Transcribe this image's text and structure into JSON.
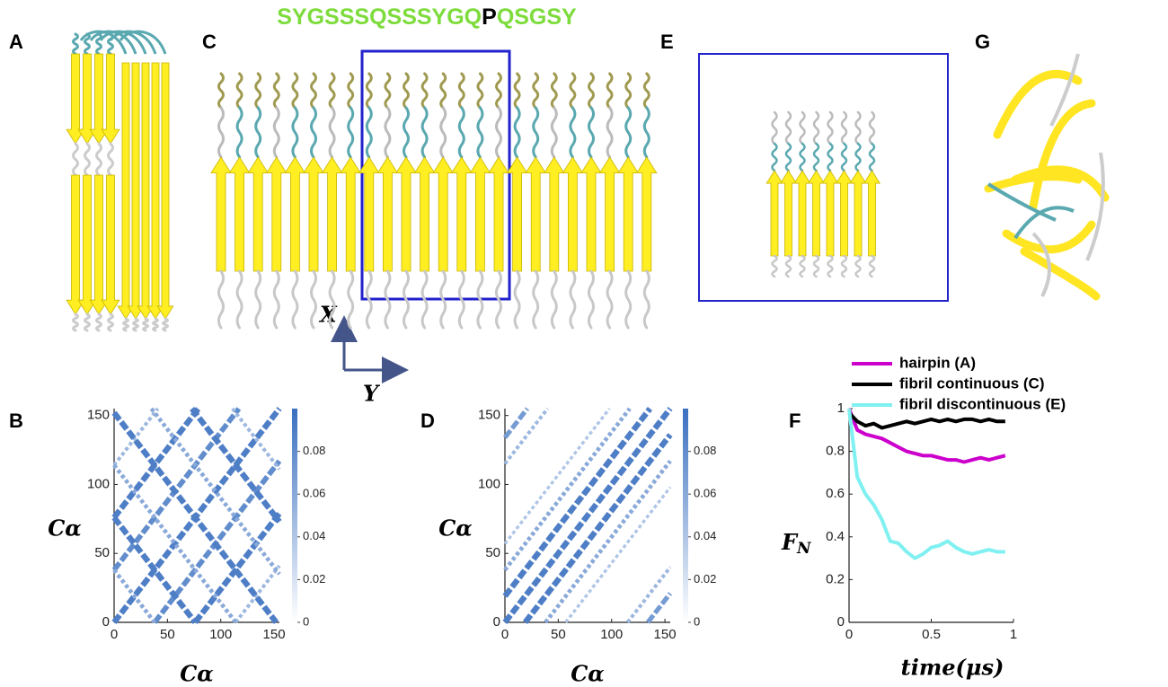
{
  "panel_labels": [
    "A",
    "C",
    "E",
    "G",
    "B",
    "D",
    "F"
  ],
  "sequence": [
    {
      "text": "SYGSSSQSSSYGQ",
      "color": "#7ddc3c"
    },
    {
      "text": "P",
      "color": "#000000"
    },
    {
      "text": "QSGSY",
      "color": "#7ddc3c"
    }
  ],
  "axes": {
    "x": "X",
    "y": "Y"
  },
  "chart_data": [
    {
      "type": "contact-map",
      "xlabel": "Cα",
      "ylabel": "Cα",
      "xlim": [
        0,
        155
      ],
      "ylim": [
        0,
        155
      ],
      "xticks": [
        0,
        50,
        100,
        150
      ],
      "yticks": [
        0,
        50,
        100,
        150
      ],
      "clim": [
        0,
        0.1
      ],
      "cticks": [
        0,
        0.02,
        0.04,
        0.06,
        0.08
      ],
      "color": "#3a70c0",
      "bands": [
        {
          "slope": 1,
          "intercept": 0,
          "value": 0.09
        },
        {
          "slope": 1,
          "intercept": 38,
          "value": 0.08
        },
        {
          "slope": 1,
          "intercept": -38,
          "value": 0.08
        },
        {
          "slope": 1,
          "intercept": 76,
          "value": 0.09
        },
        {
          "slope": 1,
          "intercept": -76,
          "value": 0.09
        },
        {
          "slope": 1,
          "intercept": 114,
          "value": 0.05
        },
        {
          "slope": 1,
          "intercept": -114,
          "value": 0.05
        },
        {
          "slope": -1,
          "intercept": 38,
          "value": 0.06
        },
        {
          "slope": -1,
          "intercept": 76,
          "value": 0.09
        },
        {
          "slope": -1,
          "intercept": 114,
          "value": 0.06
        },
        {
          "slope": -1,
          "intercept": 152,
          "value": 0.09
        },
        {
          "slope": -1,
          "intercept": 190,
          "value": 0.06
        },
        {
          "slope": -1,
          "intercept": 228,
          "value": 0.09
        },
        {
          "slope": -1,
          "intercept": 266,
          "value": 0.05
        }
      ]
    },
    {
      "type": "contact-map",
      "xlabel": "Cα",
      "ylabel": "Cα",
      "xlim": [
        0,
        155
      ],
      "ylim": [
        0,
        155
      ],
      "xticks": [
        0,
        50,
        100,
        150
      ],
      "yticks": [
        0,
        50,
        100,
        150
      ],
      "clim": [
        0,
        0.1
      ],
      "cticks": [
        0,
        0.02,
        0.04,
        0.06,
        0.08
      ],
      "color": "#3a70c0",
      "bands": [
        {
          "slope": 1,
          "intercept": 0,
          "value": 0.09
        },
        {
          "slope": 1,
          "intercept": 19,
          "value": 0.09
        },
        {
          "slope": 1,
          "intercept": -19,
          "value": 0.09
        },
        {
          "slope": 1,
          "intercept": 38,
          "value": 0.06
        },
        {
          "slope": 1,
          "intercept": -38,
          "value": 0.06
        },
        {
          "slope": 1,
          "intercept": 57,
          "value": 0.04
        },
        {
          "slope": 1,
          "intercept": -57,
          "value": 0.04
        },
        {
          "slope": 1,
          "intercept": 115,
          "value": 0.05
        },
        {
          "slope": 1,
          "intercept": -115,
          "value": 0.05
        },
        {
          "slope": 1,
          "intercept": 134,
          "value": 0.07
        },
        {
          "slope": 1,
          "intercept": -134,
          "value": 0.07
        }
      ]
    },
    {
      "type": "line",
      "xlabel": "time(μs)",
      "ylabel": "F",
      "ylabel_subscript": "N",
      "xlim": [
        0,
        1
      ],
      "ylim": [
        0,
        1
      ],
      "xticks": [
        0,
        0.5,
        1
      ],
      "yticks": [
        0,
        0.2,
        0.4,
        0.6,
        0.8,
        1
      ],
      "x": [
        0,
        0.05,
        0.1,
        0.15,
        0.2,
        0.25,
        0.3,
        0.35,
        0.4,
        0.45,
        0.5,
        0.55,
        0.6,
        0.65,
        0.7,
        0.75,
        0.8,
        0.85,
        0.9,
        0.95
      ],
      "series": [
        {
          "name": "hairpin (A)",
          "color": "#cc00cc",
          "values": [
            1,
            0.9,
            0.88,
            0.87,
            0.86,
            0.84,
            0.82,
            0.8,
            0.79,
            0.78,
            0.78,
            0.77,
            0.76,
            0.76,
            0.75,
            0.76,
            0.77,
            0.76,
            0.77,
            0.78
          ]
        },
        {
          "name": "fibril continuous (C)",
          "color": "#000000",
          "values": [
            0.98,
            0.94,
            0.92,
            0.93,
            0.91,
            0.92,
            0.93,
            0.94,
            0.93,
            0.94,
            0.95,
            0.94,
            0.95,
            0.94,
            0.95,
            0.95,
            0.94,
            0.95,
            0.94,
            0.94
          ]
        },
        {
          "name": "fibril discontinuous (E)",
          "color": "#80f0f0",
          "values": [
            1,
            0.68,
            0.6,
            0.55,
            0.48,
            0.38,
            0.37,
            0.33,
            0.3,
            0.32,
            0.35,
            0.36,
            0.38,
            0.35,
            0.33,
            0.32,
            0.33,
            0.34,
            0.33,
            0.33
          ]
        }
      ]
    }
  ]
}
